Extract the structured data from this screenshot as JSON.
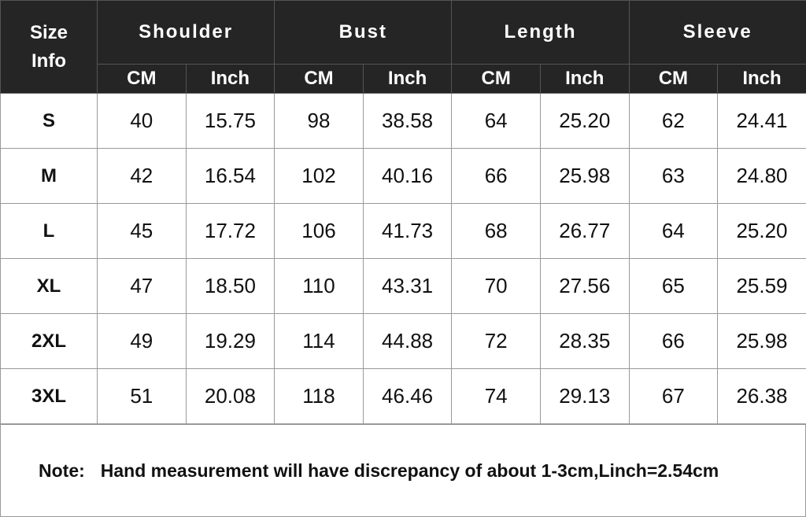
{
  "header": {
    "size_label": [
      "Size",
      "Info"
    ],
    "groups": [
      "Shoulder",
      "Bust",
      "Length",
      "Sleeve"
    ],
    "units": [
      "CM",
      "Inch"
    ]
  },
  "rows": [
    {
      "size": "S",
      "values": [
        "40",
        "15.75",
        "98",
        "38.58",
        "64",
        "25.20",
        "62",
        "24.41"
      ]
    },
    {
      "size": "M",
      "values": [
        "42",
        "16.54",
        "102",
        "40.16",
        "66",
        "25.98",
        "63",
        "24.80"
      ]
    },
    {
      "size": "L",
      "values": [
        "45",
        "17.72",
        "106",
        "41.73",
        "68",
        "26.77",
        "64",
        "25.20"
      ]
    },
    {
      "size": "XL",
      "values": [
        "47",
        "18.50",
        "110",
        "43.31",
        "70",
        "27.56",
        "65",
        "25.59"
      ]
    },
    {
      "size": "2XL",
      "values": [
        "49",
        "19.29",
        "114",
        "44.88",
        "72",
        "28.35",
        "66",
        "25.98"
      ]
    },
    {
      "size": "3XL",
      "values": [
        "51",
        "20.08",
        "118",
        "46.46",
        "74",
        "29.13",
        "67",
        "26.38"
      ]
    }
  ],
  "note": {
    "label": "Note:",
    "text": "Hand measurement will have discrepancy of about 1-3cm,Linch=2.54cm"
  },
  "colors": {
    "header_bg": "#252525",
    "header_text": "#ffffff",
    "border": "#999999"
  }
}
